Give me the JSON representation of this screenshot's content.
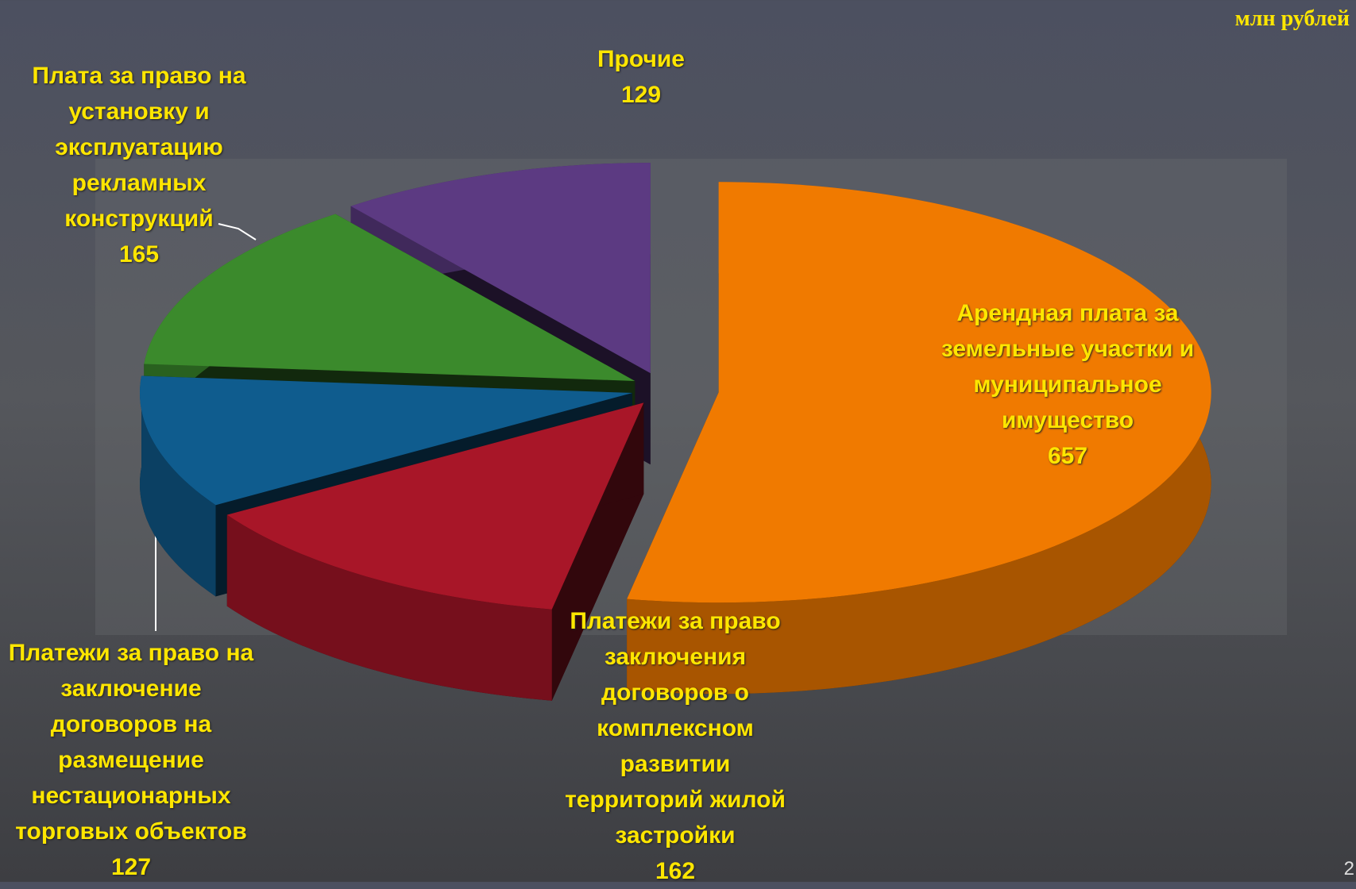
{
  "chart_data": {
    "type": "pie",
    "unit": "млн рублей",
    "categories": [
      "Арендная плата за земельные участки и муниципальное имущество",
      "Платежи за право заключения договоров о комплексном развитии территорий жилой застройки",
      "Платежи за право на заключение договоров на размещение нестационарных торговых объектов",
      "Плата за право на установку и эксплуатацию рекламных конструкций",
      "Прочие"
    ],
    "values": [
      657,
      162,
      127,
      165,
      129
    ],
    "colors": [
      "#f07a00",
      "#a81628",
      "#0f5c8e",
      "#3b8a2c",
      "#5c3a82"
    ]
  },
  "page_number": "2"
}
